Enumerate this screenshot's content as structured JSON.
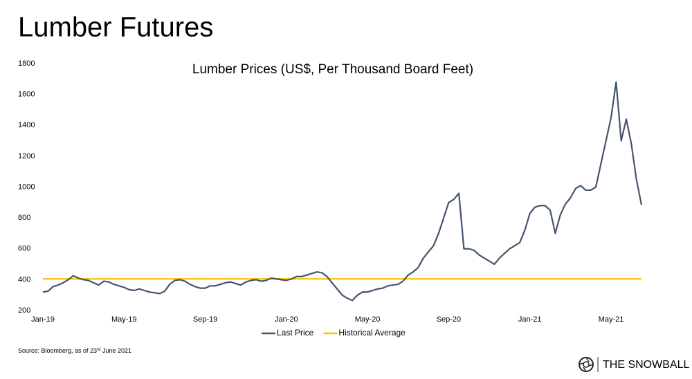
{
  "title": "Lumber Futures",
  "chart_data": {
    "type": "line",
    "title": "Lumber Prices (US$, Per Thousand Board Feet)",
    "categories": [
      "Jan-19",
      null,
      null,
      null,
      null,
      null,
      null,
      null,
      null,
      null,
      null,
      null,
      null,
      null,
      null,
      null,
      "May-19",
      null,
      null,
      null,
      null,
      null,
      null,
      null,
      null,
      null,
      null,
      null,
      null,
      null,
      null,
      null,
      "Sep-19",
      null,
      null,
      null,
      null,
      null,
      null,
      null,
      null,
      null,
      null,
      null,
      null,
      null,
      null,
      null,
      "Jan-20",
      null,
      null,
      null,
      null,
      null,
      null,
      null,
      null,
      null,
      null,
      null,
      null,
      null,
      null,
      null,
      "May-20",
      null,
      null,
      null,
      null,
      null,
      null,
      null,
      null,
      null,
      null,
      null,
      null,
      null,
      null,
      null,
      "Sep-20",
      null,
      null,
      null,
      null,
      null,
      null,
      null,
      null,
      null,
      null,
      null,
      null,
      null,
      null,
      null,
      "Jan-21",
      null,
      null,
      null,
      null,
      null,
      null,
      null,
      null,
      null,
      null,
      null,
      null,
      null,
      null,
      null,
      "May-21",
      null,
      null,
      null,
      null,
      null,
      null
    ],
    "series": [
      {
        "name": "Last Price",
        "color": "#44546a",
        "values": [
          320,
          325,
          355,
          365,
          380,
          400,
          425,
          410,
          400,
          395,
          380,
          365,
          390,
          385,
          370,
          360,
          350,
          335,
          330,
          340,
          330,
          320,
          315,
          310,
          325,
          370,
          395,
          400,
          390,
          370,
          355,
          345,
          345,
          360,
          360,
          370,
          380,
          385,
          375,
          365,
          385,
          395,
          400,
          390,
          395,
          410,
          405,
          400,
          395,
          405,
          420,
          420,
          430,
          440,
          450,
          445,
          420,
          380,
          340,
          300,
          280,
          265,
          300,
          320,
          320,
          330,
          340,
          345,
          360,
          365,
          370,
          390,
          430,
          450,
          480,
          540,
          580,
          620,
          700,
          800,
          900,
          920,
          960,
          600,
          600,
          590,
          560,
          540,
          520,
          500,
          540,
          570,
          600,
          620,
          640,
          720,
          830,
          870,
          880,
          880,
          850,
          700,
          820,
          890,
          930,
          990,
          1010,
          980,
          980,
          1000,
          1150,
          1300,
          1450,
          1680,
          1300,
          1440,
          1280,
          1050,
          885
        ]
      },
      {
        "name": "Historical Average",
        "color": "#ffc000",
        "values": [
          405,
          405,
          405,
          405,
          405,
          405,
          405,
          405,
          405,
          405,
          405,
          405,
          405,
          405,
          405,
          405,
          405,
          405,
          405,
          405,
          405,
          405,
          405,
          405,
          405,
          405,
          405,
          405,
          405,
          405,
          405,
          405,
          405,
          405,
          405,
          405,
          405,
          405,
          405,
          405,
          405,
          405,
          405,
          405,
          405,
          405,
          405,
          405,
          405,
          405,
          405,
          405,
          405,
          405,
          405,
          405,
          405,
          405,
          405,
          405,
          405,
          405,
          405,
          405,
          405,
          405,
          405,
          405,
          405,
          405,
          405,
          405,
          405,
          405,
          405,
          405,
          405,
          405,
          405,
          405,
          405,
          405,
          405,
          405,
          405,
          405,
          405,
          405,
          405,
          405,
          405,
          405,
          405,
          405,
          405,
          405,
          405,
          405,
          405,
          405,
          405,
          405,
          405,
          405,
          405,
          405,
          405,
          405,
          405,
          405,
          405,
          405,
          405,
          405,
          405,
          405,
          405,
          405,
          405
        ]
      }
    ],
    "ylim": [
      200,
      1800
    ],
    "yticks": [
      200,
      400,
      600,
      800,
      1000,
      1200,
      1400,
      1600,
      1800
    ],
    "grid": false,
    "legend": "bottom"
  },
  "footer": {
    "source": [
      "Source: Bloomberg, as of 23",
      "rd",
      " June 2021"
    ],
    "brand": "THE SNOWBALL"
  }
}
